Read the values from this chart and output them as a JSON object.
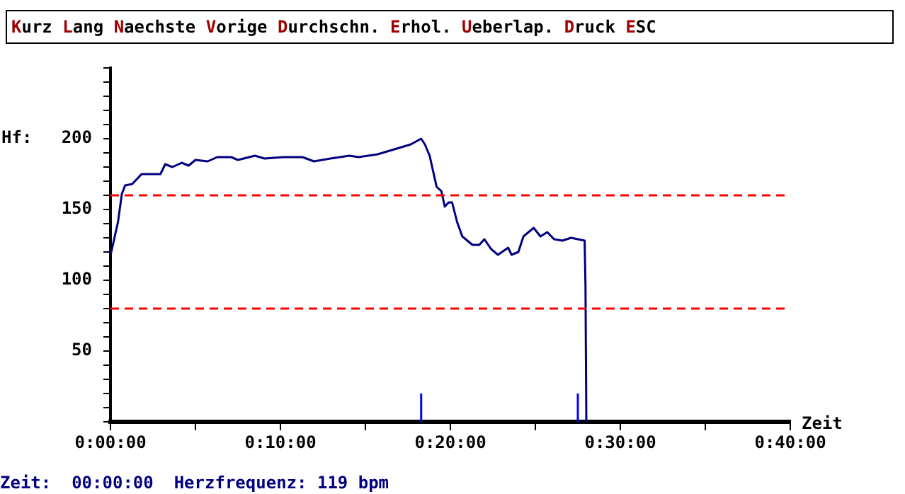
{
  "chart_data": {
    "type": "line",
    "xlabel": "Zeit",
    "ylabel": "Hf:",
    "annotations": [
      "Kurz Lang Naechste Vorige Durchschn. Erhol. Ueberlap. Druck ESC",
      "Zeit:  00:00:00  Herzfrequenz: 119 bpm"
    ],
    "x": [
      0.03,
      0.44,
      0.67,
      0.86,
      1.28,
      1.83,
      2.67,
      2.94,
      3.22,
      3.64,
      4.19,
      4.6,
      5.0,
      5.72,
      6.28,
      7.1,
      7.5,
      8.5,
      9.06,
      10.17,
      11.3,
      11.97,
      12.94,
      14.06,
      14.6,
      15.72,
      16.56,
      17.67,
      18.28,
      18.5,
      18.78,
      19.19,
      19.47,
      19.67,
      19.9,
      20.1,
      20.4,
      20.7,
      21.3,
      21.7,
      22.0,
      22.4,
      22.8,
      23.4,
      23.6,
      24.0,
      24.3,
      24.9,
      25.3,
      25.7,
      26.1,
      26.6,
      27.1,
      27.5,
      27.9,
      27.95,
      28.0
    ],
    "series": [
      {
        "color": "#000080",
        "values": [
          119,
          141,
          161,
          167,
          168,
          175,
          175,
          175,
          182,
          180,
          183,
          181,
          185,
          184,
          187,
          187,
          185,
          188,
          186,
          187,
          187,
          184,
          186,
          188,
          187,
          189,
          192,
          196,
          200,
          196,
          188,
          166,
          163,
          152,
          155,
          155,
          141,
          131,
          125,
          125,
          129,
          122,
          118,
          123,
          118,
          120,
          131,
          137,
          131,
          134,
          129,
          128,
          130,
          129,
          128,
          96,
          0
        ]
      }
    ],
    "xlim": [
      0,
      40
    ],
    "xticks": [
      {
        "value": 0,
        "label": "0:00:00"
      },
      {
        "value": 5,
        "label": null
      },
      {
        "value": 10,
        "label": "0:10:00"
      },
      {
        "value": 15,
        "label": null
      },
      {
        "value": 20,
        "label": "0:20:00"
      },
      {
        "value": 25,
        "label": null
      },
      {
        "value": 30,
        "label": "0:30:00"
      },
      {
        "value": 35,
        "label": null
      },
      {
        "value": 40,
        "label": "0:40:00"
      }
    ],
    "ylim": [
      0,
      250
    ],
    "yticks": [
      {
        "value": 0,
        "label": null
      },
      {
        "value": 10,
        "label": null
      },
      {
        "value": 20,
        "label": null
      },
      {
        "value": 30,
        "label": null
      },
      {
        "value": 40,
        "label": null
      },
      50,
      {
        "value": 60,
        "label": null
      },
      {
        "value": 70,
        "label": null
      },
      {
        "value": 80,
        "label": null
      },
      {
        "value": 90,
        "label": null
      },
      100,
      {
        "value": 110,
        "label": null
      },
      {
        "value": 120,
        "label": null
      },
      {
        "value": 130,
        "label": null
      },
      {
        "value": 140,
        "label": null
      },
      150,
      {
        "value": 160,
        "label": null
      },
      {
        "value": 170,
        "label": null
      },
      {
        "value": 180,
        "label": null
      },
      {
        "value": 190,
        "label": null
      },
      200,
      {
        "value": 210,
        "label": null
      },
      {
        "value": 220,
        "label": null
      },
      {
        "value": 230,
        "label": null
      },
      {
        "value": 240,
        "label": null
      },
      {
        "value": 250,
        "label": null
      }
    ],
    "ref_lines": [
      {
        "axis": "y",
        "value": 160,
        "color": "#ff0000",
        "line_style": "dashed"
      },
      {
        "axis": "y",
        "value": 80,
        "color": "#ff0000",
        "line_style": "dashed"
      },
      {
        "axis": "x",
        "value": 18.28,
        "color": "#0000ff"
      },
      {
        "axis": "x",
        "value": 27.5,
        "color": "#0000ff"
      }
    ],
    "grid": false,
    "legend": false,
    "marker": "none",
    "line_style": "solid"
  }
}
